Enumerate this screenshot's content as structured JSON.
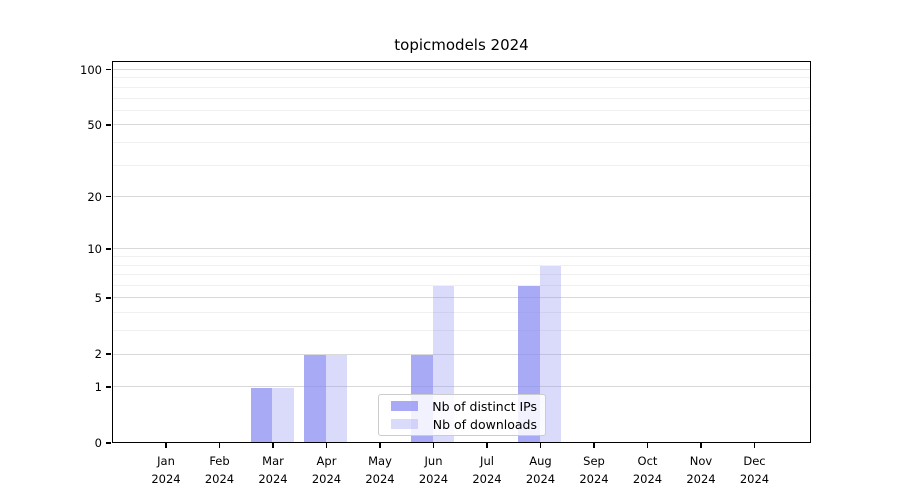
{
  "title": "topicmodels 2024",
  "chart_data": {
    "type": "bar",
    "title": "topicmodels 2024",
    "categories": [
      "Jan 2024",
      "Feb 2024",
      "Mar 2024",
      "Apr 2024",
      "May 2024",
      "Jun 2024",
      "Jul 2024",
      "Aug 2024",
      "Sep 2024",
      "Oct 2024",
      "Nov 2024",
      "Dec 2024"
    ],
    "series": [
      {
        "name": "Nb of distinct IPs",
        "color": "rgba(136,137,242,0.72)",
        "values": [
          0,
          0,
          1,
          2,
          0,
          2,
          0,
          6,
          0,
          0,
          0,
          0
        ]
      },
      {
        "name": "Nb of downloads",
        "color": "rgba(136,137,242,0.31)",
        "values": [
          0,
          0,
          1,
          2,
          0,
          6,
          0,
          8,
          0,
          0,
          0,
          0
        ]
      }
    ],
    "xlabel": "",
    "ylabel": "",
    "y_scale": "log1p",
    "ylim": [
      0,
      111
    ],
    "y_major_ticks": [
      0,
      1,
      2,
      5,
      10,
      20,
      50,
      100
    ],
    "y_minor_gridlines": [
      3,
      4,
      6,
      7,
      8,
      9,
      30,
      40,
      60,
      70,
      80,
      90
    ],
    "grid": "on",
    "legend_position": "bottom-center"
  },
  "colors": {
    "bar_dark": "rgba(136,137,242,0.72)",
    "bar_light": "rgba(136,137,242,0.31)",
    "grid_major": "#d9d9d9",
    "grid_minor": "#f0f0f0",
    "spine": "#000000",
    "background": "#ffffff"
  }
}
